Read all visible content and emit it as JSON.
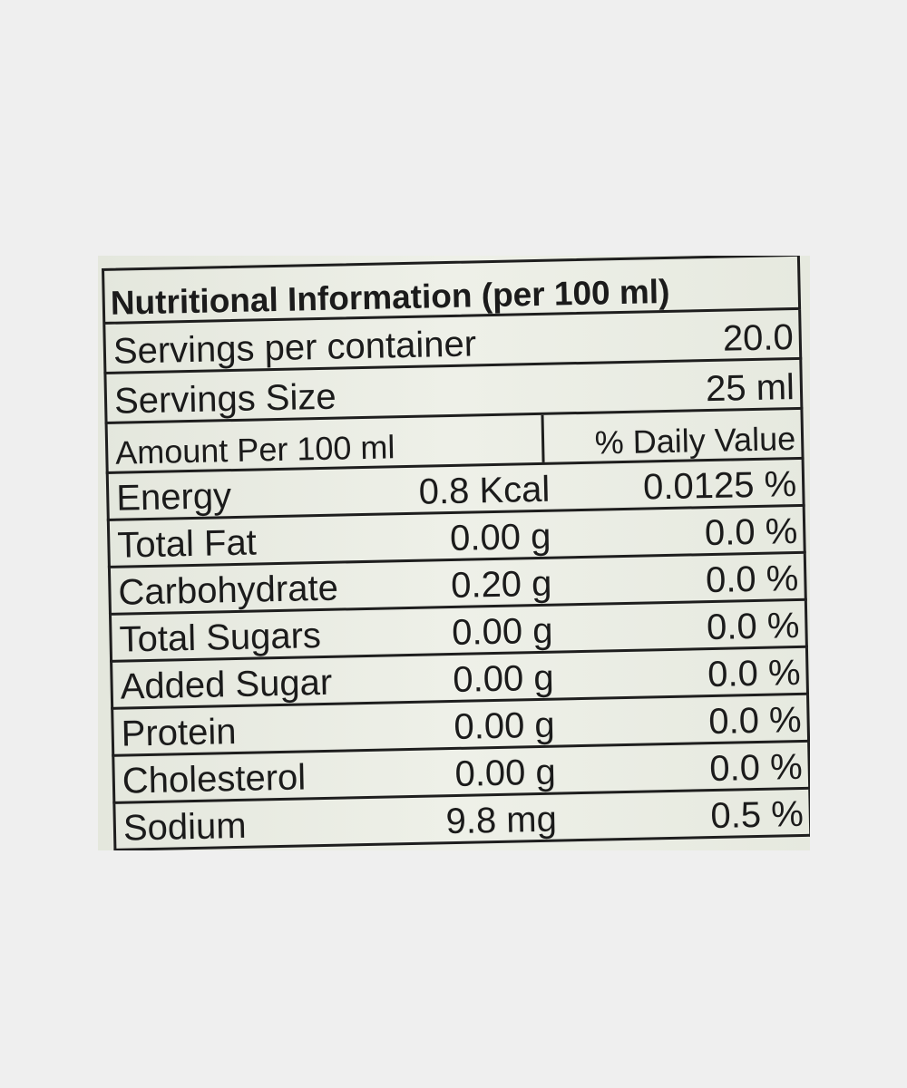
{
  "label": {
    "title": "Nutritional Information (per 100 ml)",
    "servings": [
      {
        "name": "Servings per container",
        "value": "20.0"
      },
      {
        "name": "Servings Size",
        "value": "25 ml"
      }
    ],
    "header": {
      "amount": "Amount Per 100 ml",
      "daily_value": "% Daily Value"
    },
    "rows": [
      {
        "name": "Energy",
        "amount": "0.8 Kcal",
        "daily_value": "0.0125 %"
      },
      {
        "name": "Total Fat",
        "amount": "0.00 g",
        "daily_value": "0.0 %"
      },
      {
        "name": "Carbohydrate",
        "amount": "0.20 g",
        "daily_value": "0.0 %"
      },
      {
        "name": "Total Sugars",
        "amount": "0.00 g",
        "daily_value": "0.0 %"
      },
      {
        "name": "Added Sugar",
        "amount": "0.00 g",
        "daily_value": "0.0 %"
      },
      {
        "name": "Protein",
        "amount": "0.00 g",
        "daily_value": "0.0 %"
      },
      {
        "name": "Cholesterol",
        "amount": "0.00 g",
        "daily_value": "0.0 %"
      },
      {
        "name": "Sodium",
        "amount": "9.8 mg",
        "daily_value": "0.5 %"
      }
    ]
  }
}
